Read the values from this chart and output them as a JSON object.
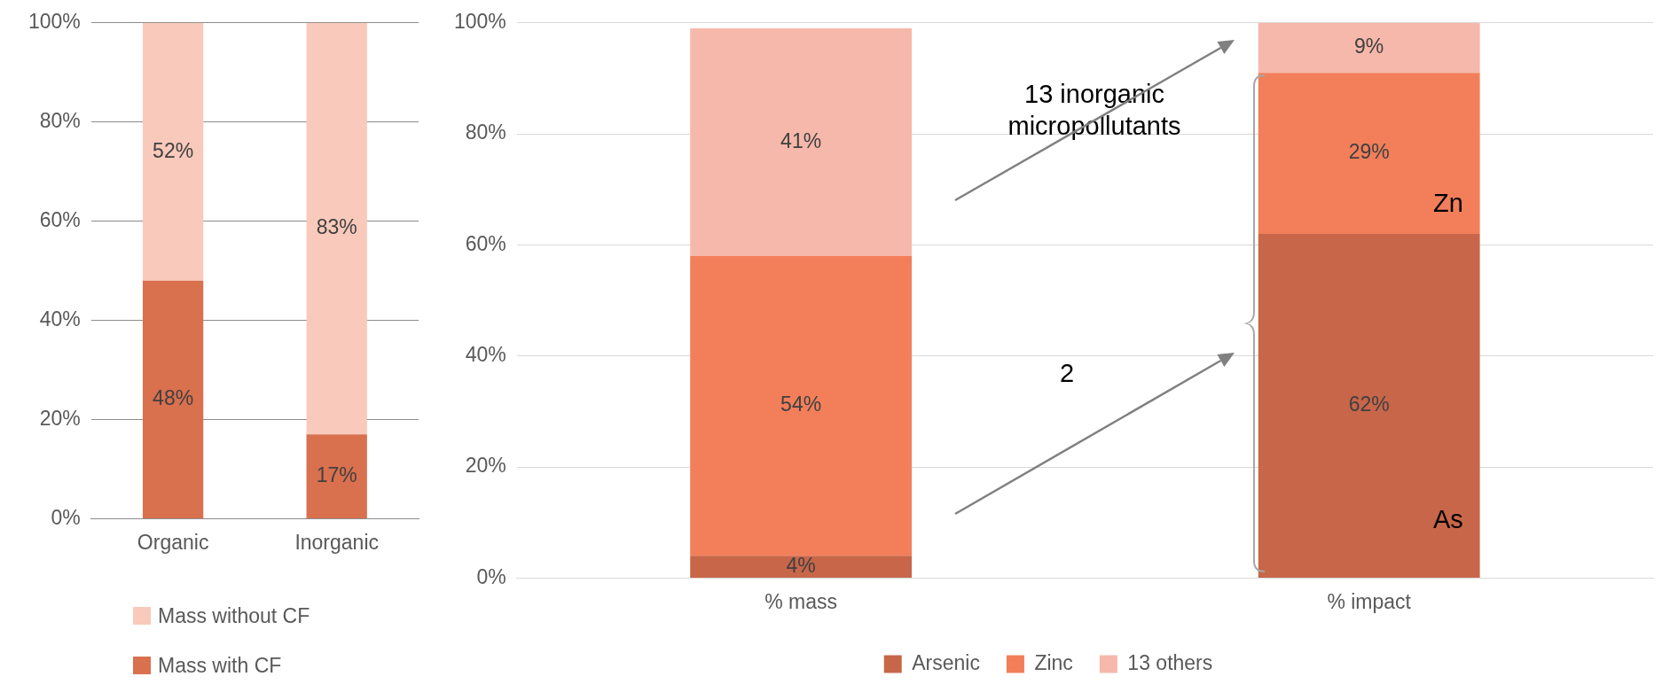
{
  "chart_data": [
    {
      "type": "bar",
      "stacked": true,
      "categories": [
        "Organic",
        "Inorganic"
      ],
      "series": [
        {
          "name": "Mass with CF",
          "color": "#d9704e",
          "values": [
            48,
            17
          ],
          "value_labels": [
            "48%",
            "17%"
          ]
        },
        {
          "name": "Mass without CF",
          "color": "#f9c9bb",
          "values": [
            52,
            83
          ],
          "value_labels": [
            "52%",
            "83%"
          ]
        }
      ],
      "ylim": [
        0,
        100
      ],
      "yticks": [
        {
          "value": 0,
          "label": "0%"
        },
        {
          "value": 20,
          "label": "20%"
        },
        {
          "value": 40,
          "label": "40%"
        },
        {
          "value": 60,
          "label": "60%"
        },
        {
          "value": 80,
          "label": "80%"
        },
        {
          "value": 100,
          "label": "100%"
        }
      ],
      "grid": "y",
      "legend": "bottom"
    },
    {
      "type": "bar",
      "stacked": true,
      "categories": [
        "% mass",
        "% impact"
      ],
      "series": [
        {
          "name": "Arsenic",
          "color": "#c8664a",
          "values": [
            4,
            62
          ],
          "value_labels": [
            "4%",
            "62%"
          ]
        },
        {
          "name": "Zinc",
          "color": "#f27f5a",
          "values": [
            54,
            29
          ],
          "value_labels": [
            "54%",
            "29%"
          ]
        },
        {
          "name": "13 others",
          "color": "#f6b8aa",
          "values": [
            41,
            9
          ],
          "value_labels": [
            "41%",
            "9%"
          ]
        }
      ],
      "ylim": [
        0,
        100
      ],
      "yticks": [
        {
          "value": 0,
          "label": "0%"
        },
        {
          "value": 20,
          "label": "20%"
        },
        {
          "value": 40,
          "label": "40%"
        },
        {
          "value": 60,
          "label": "60%"
        },
        {
          "value": 80,
          "label": "80%"
        },
        {
          "value": 100,
          "label": "100%"
        }
      ],
      "grid": "y",
      "legend": "bottom",
      "annotations": [
        "13 inorganic\nmicropollutants",
        "2",
        "Zn",
        "As"
      ]
    }
  ]
}
